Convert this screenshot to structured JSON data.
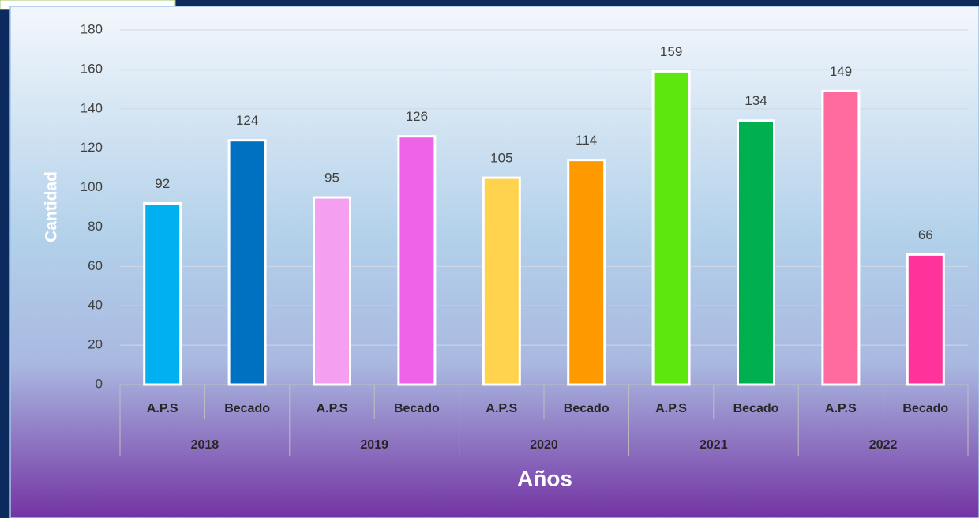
{
  "chart_data": {
    "type": "bar",
    "y_label": "Cantidad",
    "x_label": "Años",
    "groups": [
      "2018",
      "2019",
      "2020",
      "2021",
      "2022"
    ],
    "categories": [
      "A.P.S",
      "Becado",
      "A.P.S",
      "Becado",
      "A.P.S",
      "Becado",
      "A.P.S",
      "Becado",
      "A.P.S",
      "Becado"
    ],
    "values": [
      92,
      124,
      95,
      126,
      105,
      114,
      159,
      134,
      149,
      66
    ],
    "colors": [
      "#00b0f0",
      "#0070c0",
      "#f49ff0",
      "#ee63e8",
      "#ffd34d",
      "#ff9900",
      "#5ee60f",
      "#00b050",
      "#ff6b9e",
      "#ff3399"
    ],
    "ylim": [
      0,
      180
    ],
    "yticks": [
      0,
      20,
      40,
      60,
      80,
      100,
      120,
      140,
      160,
      180
    ],
    "grid": true
  }
}
